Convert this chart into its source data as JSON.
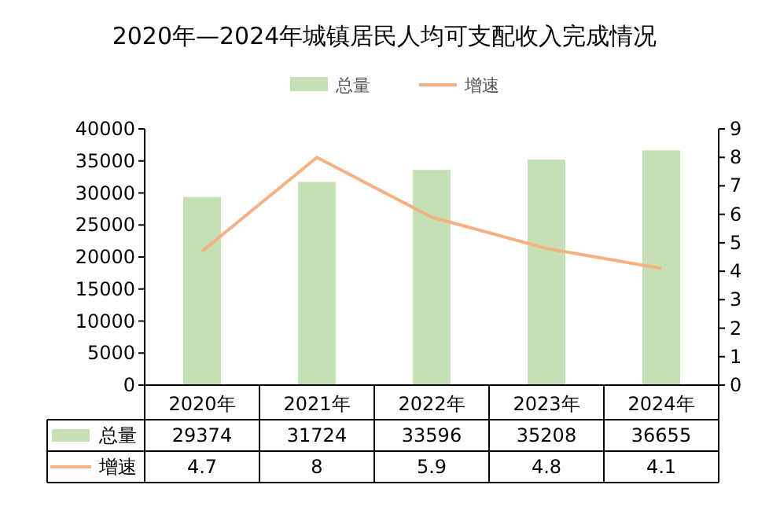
{
  "chart_data": {
    "type": "bar",
    "title": "2020年—2024年城镇居民人均可支配收入完成情况",
    "categories": [
      "2020年",
      "2021年",
      "2022年",
      "2023年",
      "2024年"
    ],
    "series": [
      {
        "name": "总量",
        "color": "#c5e0b4",
        "values": [
          29374,
          31724,
          33596,
          35208,
          36655
        ]
      },
      {
        "name": "增速",
        "type": "line",
        "axis": "y2",
        "color": "#f4b183",
        "values": [
          4.7,
          8,
          5.9,
          4.8,
          4.1
        ]
      }
    ],
    "ylim": [
      0,
      40000
    ],
    "yticks": [
      0,
      5000,
      10000,
      15000,
      20000,
      25000,
      30000,
      35000,
      40000
    ],
    "y2lim": [
      0,
      9
    ],
    "y2ticks": [
      0,
      1,
      2,
      3,
      4,
      5,
      6,
      7,
      8,
      9
    ],
    "data_labels": true,
    "legend": "top",
    "grid": false,
    "marker": "none"
  }
}
